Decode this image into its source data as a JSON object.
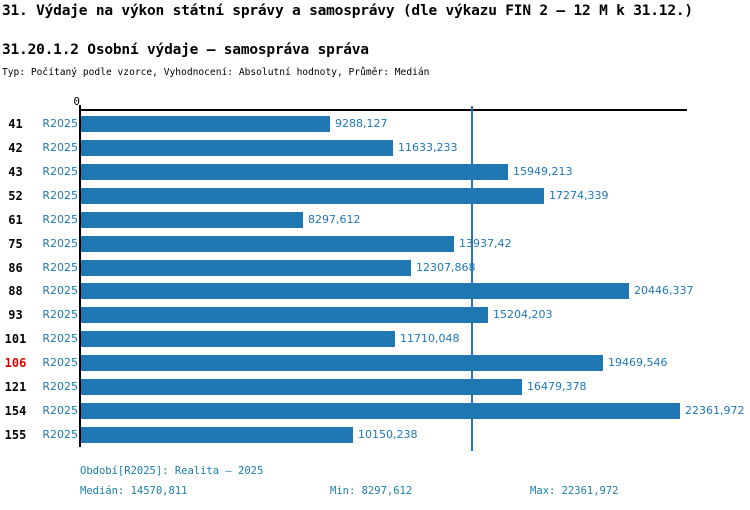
{
  "page": {
    "title": "31. Výdaje na výkon státní správy a samosprávy (dle výkazu FIN 2 – 12 M k 31.12.)",
    "subtitle": "31.20.1.2 Osobní výdaje – samospráva správa",
    "meta": "Typ: Počítaný podle vzorce, Vyhodnocení: Absolutní hodnoty, Průměr: Medián"
  },
  "chart_data": {
    "type": "bar",
    "orientation": "horizontal",
    "title": "31.20.1.2 Osobní výdaje – samospráva správa",
    "categories": [
      "41",
      "42",
      "43",
      "52",
      "61",
      "75",
      "86",
      "88",
      "93",
      "101",
      "106",
      "121",
      "154",
      "155"
    ],
    "series": [
      {
        "name": "R2025",
        "values": [
          9288.127,
          11633.233,
          15949.213,
          17274.339,
          8297.612,
          13937.42,
          12307.868,
          20446.337,
          15204.203,
          11710.048,
          19469.546,
          16479.378,
          22361.972,
          10150.238
        ]
      }
    ],
    "value_labels": [
      "9288,127",
      "11633,233",
      "15949,213",
      "17274,339",
      "8297,612",
      "13937,42",
      "12307,868",
      "20446,337",
      "15204,203",
      "11710,048",
      "19469,546",
      "16479,378",
      "22361,972",
      "10150,238"
    ],
    "highlighted_category": "106",
    "x_axis": {
      "origin_label": "0",
      "xlim": [
        0,
        22623
      ],
      "grid": false
    },
    "median_line_value": 14570.811,
    "legend_position": "none"
  },
  "footer": {
    "period": "Období[R2025]: Realita – 2025",
    "median": "Medián: 14570,811",
    "min": "Min: 8297,612",
    "max": "Max: 22361,972"
  },
  "colors": {
    "bar": "#1f77b4",
    "value_text": "#1f77b4",
    "series_text": "#1f77b4",
    "median_line": "#2878ae",
    "axis": "#000000",
    "category_text": "#000000",
    "highlight_text": "#e00000",
    "footer_text": "#1b7ea7"
  }
}
